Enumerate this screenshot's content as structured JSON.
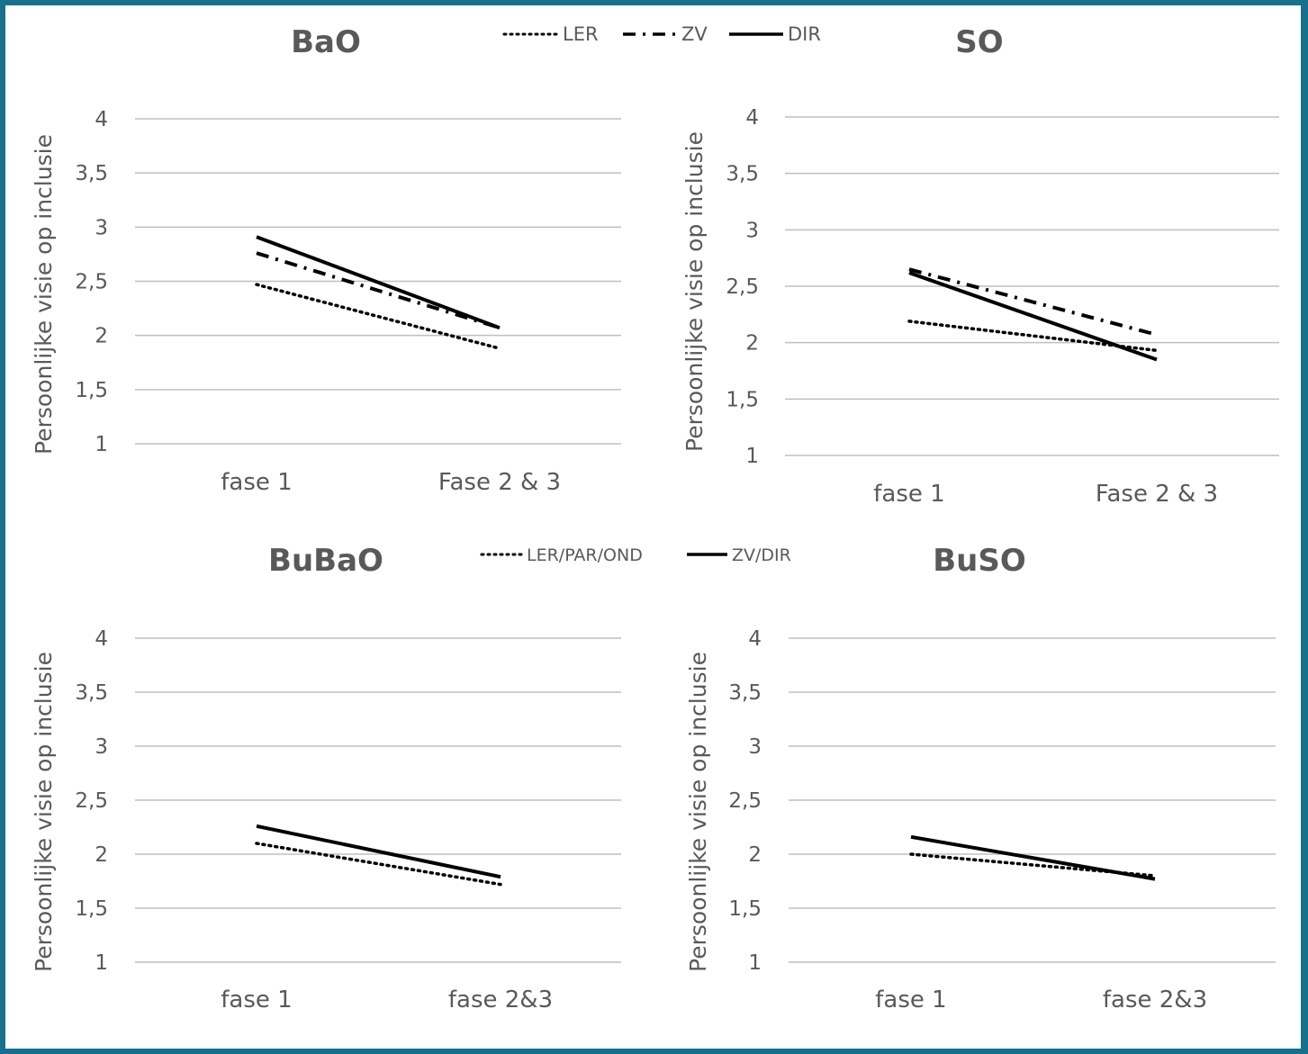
{
  "figure": {
    "top_legend": [
      {
        "label": "LER",
        "style": "dotted"
      },
      {
        "label": "ZV",
        "style": "dashdot"
      },
      {
        "label": "DIR",
        "style": "solid"
      }
    ],
    "bottom_legend": [
      {
        "label": "LER/PAR/OND",
        "style": "dotted"
      },
      {
        "label": "ZV/DIR",
        "style": "solid"
      }
    ],
    "colors": {
      "frame": "#17708c",
      "lines": "#000000",
      "grid": "#bfbfbf",
      "text": "#595959"
    }
  },
  "chart_data": [
    {
      "type": "line",
      "title": "BaO",
      "ylabel": "Persoonlijke visie op inclusie",
      "ylim": [
        1,
        4
      ],
      "yticks": [
        "1",
        "1,5",
        "2",
        "2,5",
        "3",
        "3,5",
        "4"
      ],
      "categories": [
        "fase 1",
        "Fase 2 & 3"
      ],
      "grid": true,
      "series": [
        {
          "name": "LER",
          "style": "dotted",
          "values": [
            2.47,
            1.88
          ]
        },
        {
          "name": "ZV",
          "style": "dashdot",
          "values": [
            2.76,
            2.07
          ]
        },
        {
          "name": "DIR",
          "style": "solid",
          "values": [
            2.91,
            2.07
          ]
        }
      ]
    },
    {
      "type": "line",
      "title": "SO",
      "ylabel": "Persoonlijke visie op inclusie",
      "ylim": [
        1,
        4
      ],
      "yticks": [
        "1",
        "1,5",
        "2",
        "2,5",
        "3",
        "3,5",
        "4"
      ],
      "categories": [
        "fase 1",
        "Fase 2 & 3"
      ],
      "grid": true,
      "series": [
        {
          "name": "LER",
          "style": "dotted",
          "values": [
            2.19,
            1.93
          ]
        },
        {
          "name": "ZV",
          "style": "dashdot",
          "values": [
            2.65,
            2.07
          ]
        },
        {
          "name": "DIR",
          "style": "solid",
          "values": [
            2.62,
            1.85
          ]
        }
      ]
    },
    {
      "type": "line",
      "title": "BuBaO",
      "ylabel": "Persoonlijke visie op inclusie",
      "ylim": [
        1,
        4
      ],
      "yticks": [
        "1",
        "1,5",
        "2",
        "2,5",
        "3",
        "3,5",
        "4"
      ],
      "categories": [
        "fase 1",
        "fase 2&3"
      ],
      "grid": true,
      "series": [
        {
          "name": "LER/PAR/OND",
          "style": "dotted",
          "values": [
            2.1,
            1.72
          ]
        },
        {
          "name": "ZV/DIR",
          "style": "solid",
          "values": [
            2.26,
            1.79
          ]
        }
      ]
    },
    {
      "type": "line",
      "title": "BuSO",
      "ylabel": "Persoonlijke visie op inclusie",
      "ylim": [
        1,
        4
      ],
      "yticks": [
        "1",
        "1,5",
        "2",
        "2,5",
        "3",
        "3,5",
        "4"
      ],
      "categories": [
        "fase 1",
        "fase 2&3"
      ],
      "grid": true,
      "series": [
        {
          "name": "LER/PAR/OND",
          "style": "dotted",
          "values": [
            2.0,
            1.8
          ]
        },
        {
          "name": "ZV/DIR",
          "style": "solid",
          "values": [
            2.16,
            1.77
          ]
        }
      ]
    }
  ]
}
